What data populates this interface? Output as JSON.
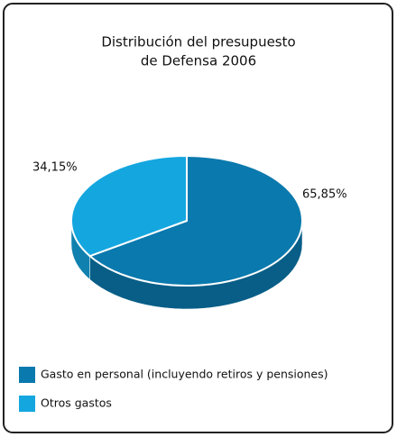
{
  "chart_data": {
    "type": "pie",
    "title": [
      "Distribución del presupuesto",
      "de Defensa 2006"
    ],
    "categories": [
      "Gasto en personal (incluyendo retiros y pensiones)",
      "Otros gastos"
    ],
    "values": [
      65.85,
      34.15
    ],
    "value_labels": [
      "65,85%",
      "34,15%"
    ],
    "colors": [
      "#0a79ad",
      "#14a6df"
    ],
    "legend": "bottom"
  }
}
